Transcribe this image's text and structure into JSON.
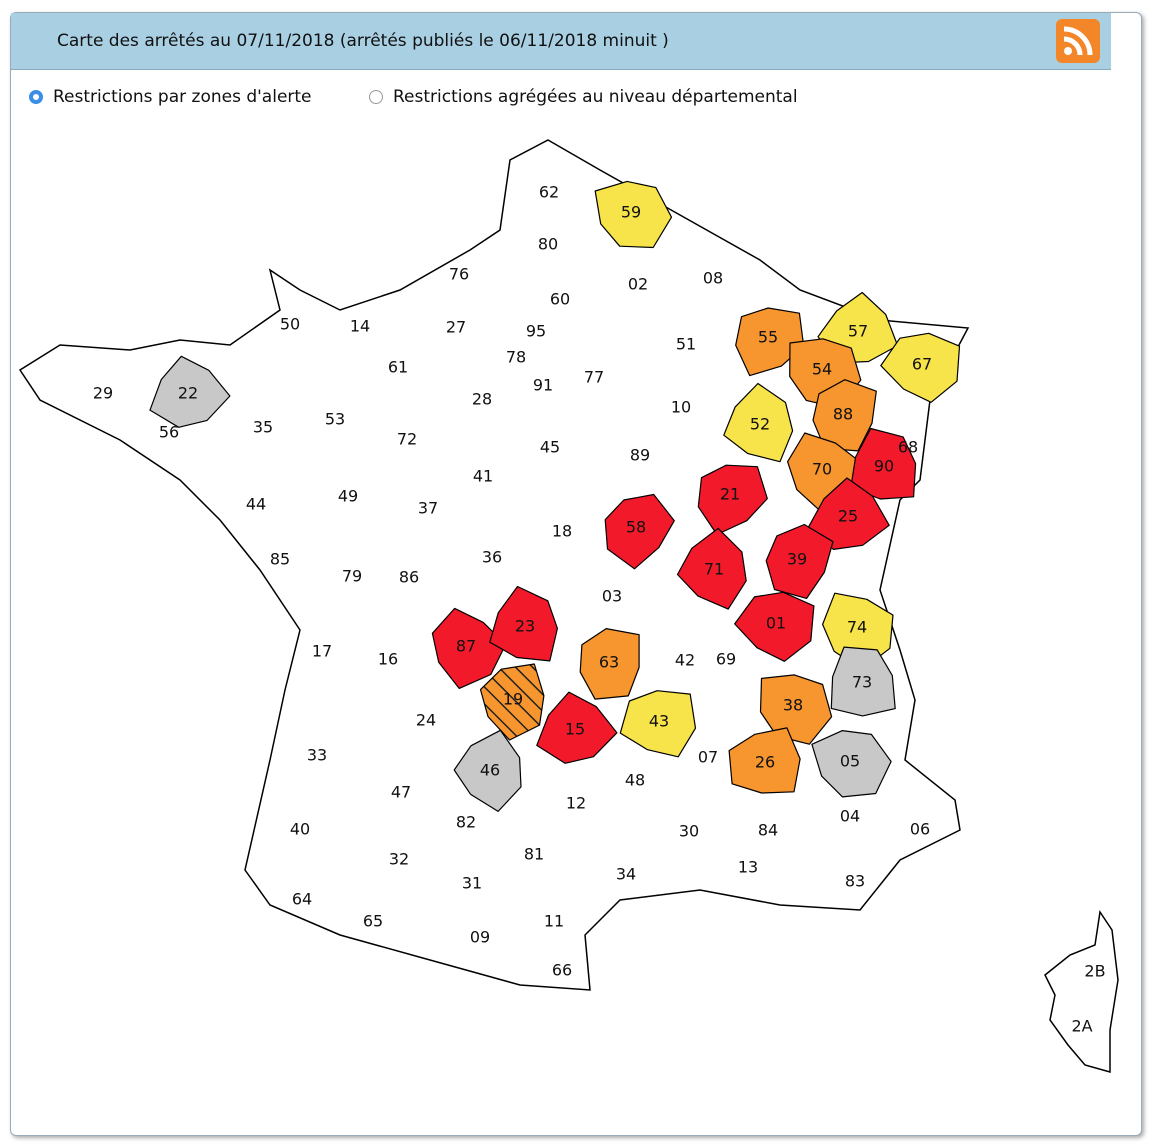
{
  "header": {
    "title": "Carte des arrêtés au 07/11/2018 (arrêtés publiés le 06/11/2018 minuit )"
  },
  "options": [
    {
      "label": "Restrictions par zones d'alerte",
      "selected": true
    },
    {
      "label": "Restrictions agrégées au niveau départemental",
      "selected": false
    }
  ],
  "departments": [
    {
      "code": "62",
      "fill": "#ffffff"
    },
    {
      "code": "59",
      "fill": "#f7e34a"
    },
    {
      "code": "80",
      "fill": "#ffffff"
    },
    {
      "code": "02",
      "fill": "#ffffff"
    },
    {
      "code": "08",
      "fill": "#ffffff"
    },
    {
      "code": "76",
      "fill": "#ffffff"
    },
    {
      "code": "60",
      "fill": "#ffffff"
    },
    {
      "code": "50",
      "fill": "#ffffff"
    },
    {
      "code": "14",
      "fill": "#ffffff"
    },
    {
      "code": "27",
      "fill": "#ffffff"
    },
    {
      "code": "95",
      "fill": "#ffffff"
    },
    {
      "code": "55",
      "fill": "#f7952f"
    },
    {
      "code": "57",
      "fill": "#f7e34a"
    },
    {
      "code": "67",
      "fill": "#f7e34a"
    },
    {
      "code": "51",
      "fill": "#ffffff"
    },
    {
      "code": "78",
      "fill": "#ffffff"
    },
    {
      "code": "61",
      "fill": "#ffffff"
    },
    {
      "code": "29",
      "fill": "#ffffff"
    },
    {
      "code": "22",
      "fill": "#c8c8c8"
    },
    {
      "code": "77",
      "fill": "#ffffff"
    },
    {
      "code": "54",
      "fill": "#f7952f"
    },
    {
      "code": "91",
      "fill": "#ffffff"
    },
    {
      "code": "28",
      "fill": "#ffffff"
    },
    {
      "code": "53",
      "fill": "#ffffff"
    },
    {
      "code": "72",
      "fill": "#ffffff"
    },
    {
      "code": "35",
      "fill": "#ffffff"
    },
    {
      "code": "56",
      "fill": "#ffffff"
    },
    {
      "code": "10",
      "fill": "#ffffff"
    },
    {
      "code": "52",
      "fill": "#f7e34a"
    },
    {
      "code": "88",
      "fill": "#f7952f"
    },
    {
      "code": "68",
      "fill": "#ffffff"
    },
    {
      "code": "45",
      "fill": "#ffffff"
    },
    {
      "code": "89",
      "fill": "#ffffff"
    },
    {
      "code": "70",
      "fill": "#f7952f"
    },
    {
      "code": "90",
      "fill": "#f21a2a"
    },
    {
      "code": "41",
      "fill": "#ffffff"
    },
    {
      "code": "21",
      "fill": "#f21a2a"
    },
    {
      "code": "25",
      "fill": "#f21a2a"
    },
    {
      "code": "44",
      "fill": "#ffffff"
    },
    {
      "code": "49",
      "fill": "#ffffff"
    },
    {
      "code": "37",
      "fill": "#ffffff"
    },
    {
      "code": "18",
      "fill": "#ffffff"
    },
    {
      "code": "58",
      "fill": "#f21a2a"
    },
    {
      "code": "85",
      "fill": "#ffffff"
    },
    {
      "code": "79",
      "fill": "#ffffff"
    },
    {
      "code": "86",
      "fill": "#ffffff"
    },
    {
      "code": "36",
      "fill": "#ffffff"
    },
    {
      "code": "71",
      "fill": "#f21a2a"
    },
    {
      "code": "39",
      "fill": "#f21a2a"
    },
    {
      "code": "03",
      "fill": "#ffffff"
    },
    {
      "code": "17",
      "fill": "#ffffff"
    },
    {
      "code": "16",
      "fill": "#ffffff"
    },
    {
      "code": "87",
      "fill": "#f21a2a"
    },
    {
      "code": "23",
      "fill": "#f21a2a"
    },
    {
      "code": "63",
      "fill": "#f7952f"
    },
    {
      "code": "42",
      "fill": "#ffffff"
    },
    {
      "code": "69",
      "fill": "#ffffff"
    },
    {
      "code": "01",
      "fill": "#f21a2a"
    },
    {
      "code": "74",
      "fill": "#f7e34a"
    },
    {
      "code": "73",
      "fill": "#c8c8c8"
    },
    {
      "code": "19",
      "fill": "#f7952f",
      "hatched": true
    },
    {
      "code": "24",
      "fill": "#ffffff"
    },
    {
      "code": "15",
      "fill": "#f21a2a"
    },
    {
      "code": "43",
      "fill": "#f7e34a"
    },
    {
      "code": "38",
      "fill": "#f7952f"
    },
    {
      "code": "33",
      "fill": "#ffffff"
    },
    {
      "code": "46",
      "fill": "#c8c8c8"
    },
    {
      "code": "48",
      "fill": "#ffffff"
    },
    {
      "code": "07",
      "fill": "#ffffff"
    },
    {
      "code": "26",
      "fill": "#f7952f"
    },
    {
      "code": "05",
      "fill": "#c8c8c8"
    },
    {
      "code": "47",
      "fill": "#ffffff"
    },
    {
      "code": "12",
      "fill": "#ffffff"
    },
    {
      "code": "40",
      "fill": "#ffffff"
    },
    {
      "code": "82",
      "fill": "#ffffff"
    },
    {
      "code": "30",
      "fill": "#ffffff"
    },
    {
      "code": "84",
      "fill": "#ffffff"
    },
    {
      "code": "04",
      "fill": "#ffffff"
    },
    {
      "code": "06",
      "fill": "#ffffff"
    },
    {
      "code": "32",
      "fill": "#ffffff"
    },
    {
      "code": "81",
      "fill": "#ffffff"
    },
    {
      "code": "13",
      "fill": "#ffffff"
    },
    {
      "code": "83",
      "fill": "#ffffff"
    },
    {
      "code": "34",
      "fill": "#ffffff"
    },
    {
      "code": "64",
      "fill": "#ffffff"
    },
    {
      "code": "31",
      "fill": "#ffffff"
    },
    {
      "code": "65",
      "fill": "#ffffff"
    },
    {
      "code": "09",
      "fill": "#ffffff"
    },
    {
      "code": "11",
      "fill": "#ffffff"
    },
    {
      "code": "66",
      "fill": "#ffffff"
    },
    {
      "code": "2B",
      "fill": "#ffffff"
    },
    {
      "code": "2A",
      "fill": "#ffffff"
    }
  ]
}
